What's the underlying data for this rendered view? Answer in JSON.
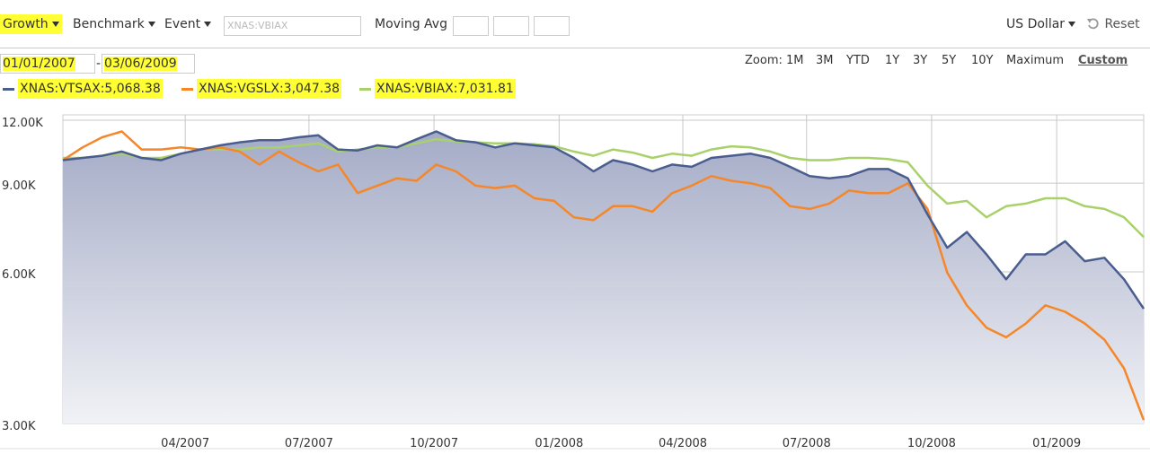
{
  "toolbar": {
    "growth": "Growth",
    "benchmark": "Benchmark",
    "event": "Event",
    "symbol_placeholder": "XNAS:VBIAX",
    "moving_avg": "Moving Avg",
    "currency": "US Dollar",
    "reset": "Reset"
  },
  "date_range": {
    "start": "01/01/2007",
    "separator": "-",
    "end": "03/06/2009"
  },
  "zoom": {
    "label": "Zoom:",
    "options": [
      "1M",
      "3M",
      "YTD",
      "1Y",
      "3Y",
      "5Y",
      "10Y",
      "Maximum",
      "Custom"
    ]
  },
  "chart_data": {
    "type": "line",
    "log_scale": true,
    "grid": true,
    "xlim": [
      "2007-01-01",
      "2009-03-06"
    ],
    "xticks": [
      {
        "value": "2007-04-01",
        "label": "04/2007"
      },
      {
        "value": "2007-07-01",
        "label": "07/2007"
      },
      {
        "value": "2007-10-01",
        "label": "10/2007"
      },
      {
        "value": "2008-01-01",
        "label": "01/2008"
      },
      {
        "value": "2008-04-01",
        "label": "04/2008"
      },
      {
        "value": "2008-07-01",
        "label": "07/2008"
      },
      {
        "value": "2008-10-01",
        "label": "10/2008"
      },
      {
        "value": "2009-01-01",
        "label": "01/2009"
      }
    ],
    "ylim": [
      3000,
      12300
    ],
    "yticks": [
      {
        "value": 3000,
        "label": "3.00K"
      },
      {
        "value": 6000,
        "label": "6.00K"
      },
      {
        "value": 9000,
        "label": "9.00K"
      },
      {
        "value": 12000,
        "label": "12.00K"
      }
    ],
    "series": [
      {
        "name": "XNAS:VTSAX:5,068.38",
        "color": "#4a5d8f",
        "area": true,
        "values": [
          10000,
          10100,
          10200,
          10400,
          10100,
          10000,
          10300,
          10500,
          10700,
          10850,
          10950,
          10950,
          11100,
          11200,
          10500,
          10450,
          10700,
          10600,
          11000,
          11400,
          10950,
          10850,
          10600,
          10800,
          10700,
          10600,
          10100,
          9500,
          10000,
          9800,
          9500,
          9800,
          9700,
          10100,
          10200,
          10300,
          10100,
          9700,
          9300,
          9200,
          9300,
          9600,
          9600,
          9200,
          7800,
          6700,
          7200,
          6500,
          5800,
          6500,
          6500,
          6900,
          6300,
          6400,
          5800,
          5068.38
        ]
      },
      {
        "name": "XNAS:VGSLX:3,047.38",
        "color": "#f5872a",
        "values": [
          10000,
          10600,
          11100,
          11400,
          10500,
          10500,
          10600,
          10500,
          10600,
          10400,
          9800,
          10400,
          9900,
          9500,
          9800,
          8600,
          8900,
          9200,
          9100,
          9800,
          9500,
          8900,
          8800,
          8900,
          8400,
          8300,
          7700,
          7600,
          8100,
          8100,
          7900,
          8600,
          8900,
          9300,
          9100,
          9000,
          8800,
          8100,
          8000,
          8200,
          8700,
          8600,
          8600,
          9000,
          8000,
          5980,
          5150,
          4650,
          4450,
          4740,
          5150,
          5000,
          4740,
          4400,
          3860,
          3047.38
        ]
      },
      {
        "name": "XNAS:VBIAX:7,031.81",
        "color": "#a9d16b",
        "values": [
          10100,
          10100,
          10200,
          10300,
          10100,
          10100,
          10300,
          10500,
          10500,
          10500,
          10600,
          10600,
          10700,
          10800,
          10400,
          10500,
          10600,
          10600,
          10800,
          11000,
          10900,
          10850,
          10800,
          10800,
          10750,
          10650,
          10400,
          10200,
          10500,
          10350,
          10100,
          10300,
          10200,
          10500,
          10650,
          10600,
          10400,
          10100,
          10000,
          10000,
          10100,
          10100,
          10050,
          9900,
          8900,
          8200,
          8300,
          7700,
          8100,
          8200,
          8400,
          8400,
          8100,
          8000,
          7700,
          7031.81
        ]
      }
    ]
  }
}
